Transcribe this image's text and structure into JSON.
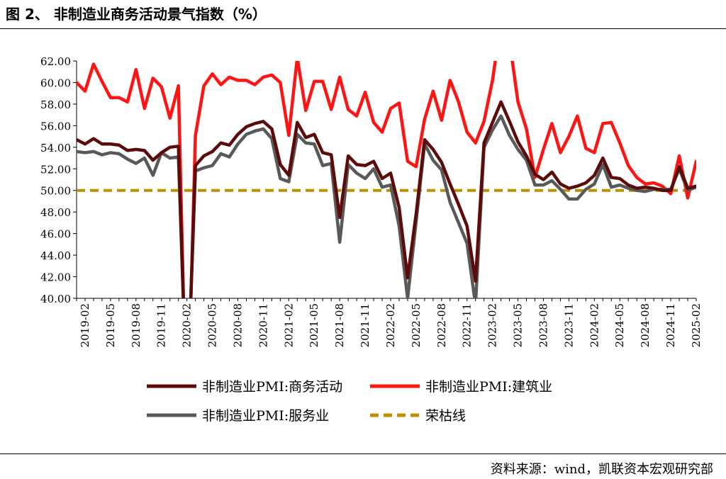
{
  "figure": {
    "title": "图 2、 非制造业商务活动景气指数（%）",
    "source": "资料来源：wind，凯联资本宏观研究部"
  },
  "chart_data": {
    "type": "line",
    "title": "",
    "xlabel": "",
    "ylabel": "",
    "ylim": [
      40,
      62
    ],
    "yticks": [
      "40.00",
      "42.00",
      "44.00",
      "46.00",
      "48.00",
      "50.00",
      "52.00",
      "54.00",
      "56.00",
      "58.00",
      "60.00",
      "62.00"
    ],
    "xtick_labels": [
      "2019-02",
      "2019-05",
      "2019-08",
      "2019-11",
      "2020-02",
      "2020-05",
      "2020-08",
      "2020-11",
      "2021-02",
      "2021-05",
      "2021-08",
      "2021-11",
      "2022-02",
      "2022-05",
      "2022-08",
      "2022-11",
      "2023-02",
      "2023-05",
      "2023-08",
      "2023-11",
      "2024-02",
      "2024-05",
      "2024-08",
      "2024-11",
      "2025-02"
    ],
    "x_start": "2019-01",
    "x_end": "2025-02",
    "legend_position": "bottom",
    "series": [
      {
        "name": "非制造业PMI:商务活动",
        "color": "#5c0a0a",
        "style": "solid",
        "values": [
          54.7,
          54.3,
          54.8,
          54.3,
          54.3,
          54.2,
          53.7,
          53.8,
          53.7,
          52.8,
          53.5,
          54.0,
          54.1,
          29.6,
          52.3,
          53.2,
          53.6,
          54.4,
          54.2,
          55.2,
          55.9,
          56.2,
          56.4,
          55.7,
          52.4,
          51.4,
          56.3,
          54.9,
          55.2,
          53.5,
          53.3,
          47.5,
          53.2,
          52.4,
          52.3,
          52.7,
          51.1,
          51.6,
          48.4,
          41.9,
          47.8,
          54.7,
          53.8,
          52.6,
          50.6,
          48.7,
          46.7,
          41.6,
          54.4,
          56.3,
          58.2,
          56.4,
          54.5,
          53.2,
          51.5,
          51.0,
          51.7,
          50.6,
          50.2,
          50.4,
          50.7,
          51.4,
          53.0,
          51.2,
          51.1,
          50.5,
          50.2,
          50.3,
          50.2,
          50.0,
          50.0,
          52.2,
          50.2,
          50.4
        ],
        "estimated": true
      },
      {
        "name": "非制造业PMI:建筑业",
        "color": "#ff1414",
        "style": "solid",
        "values": [
          60.0,
          59.2,
          61.7,
          60.1,
          58.6,
          58.6,
          58.2,
          61.2,
          57.6,
          60.4,
          59.6,
          56.7,
          59.7,
          26.6,
          55.1,
          59.7,
          60.8,
          59.8,
          60.5,
          60.2,
          60.2,
          59.8,
          60.5,
          60.7,
          60.0,
          55.1,
          62.3,
          57.4,
          60.1,
          60.1,
          57.5,
          60.5,
          57.5,
          56.9,
          59.1,
          56.3,
          55.4,
          57.6,
          58.1,
          52.7,
          52.2,
          56.6,
          59.2,
          56.5,
          60.2,
          58.2,
          55.4,
          54.4,
          56.4,
          60.2,
          65.6,
          63.9,
          58.2,
          55.7,
          51.2,
          53.8,
          56.2,
          53.5,
          55.0,
          56.9,
          53.9,
          53.5,
          56.2,
          56.3,
          54.4,
          52.3,
          51.2,
          50.6,
          50.7,
          50.4,
          49.7,
          53.2,
          49.3,
          52.7
        ],
        "estimated": true
      },
      {
        "name": "非制造业PMI:服务业",
        "color": "#595959",
        "style": "solid",
        "values": [
          53.6,
          53.5,
          53.6,
          53.3,
          53.5,
          53.4,
          52.9,
          52.5,
          53.0,
          51.4,
          53.5,
          53.0,
          53.1,
          30.1,
          51.8,
          52.1,
          52.3,
          53.4,
          53.1,
          54.3,
          55.2,
          55.5,
          55.7,
          54.8,
          51.1,
          50.8,
          55.2,
          54.4,
          54.3,
          52.3,
          52.5,
          45.2,
          52.4,
          51.6,
          51.1,
          52.0,
          50.3,
          50.5,
          46.7,
          40.0,
          47.1,
          54.3,
          52.8,
          51.9,
          48.9,
          47.0,
          45.1,
          39.4,
          54.0,
          55.6,
          56.9,
          55.1,
          53.8,
          52.8,
          50.5,
          50.5,
          50.9,
          50.1,
          49.2,
          49.2,
          50.1,
          50.6,
          52.4,
          50.3,
          50.5,
          50.2,
          50.0,
          49.9,
          50.1,
          50.1,
          50.1,
          52.0,
          50.0,
          50.3
        ],
        "estimated": true
      },
      {
        "name": "荣枯线",
        "color": "#bf9000",
        "style": "dashed",
        "values": "constant 50 for all months",
        "constant": 50
      }
    ]
  }
}
